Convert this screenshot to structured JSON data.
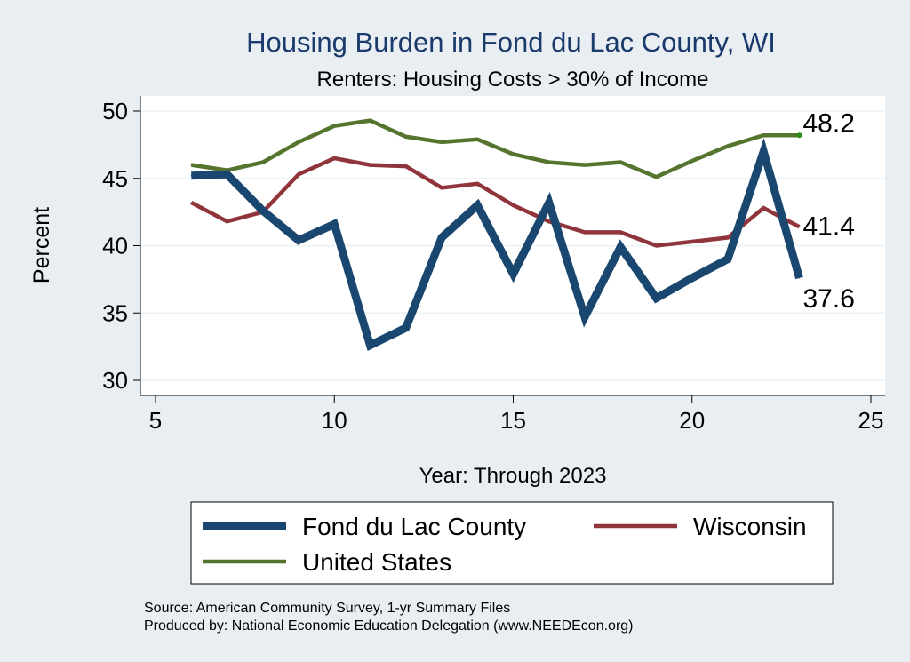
{
  "chart_data": {
    "type": "line",
    "title": "Housing Burden in Fond du Lac County, WI",
    "subtitle": "Renters: Housing Costs > 30% of Income",
    "xlabel": "Year: Through 2023",
    "ylabel": "Percent",
    "xlim": [
      5,
      25
    ],
    "ylim": [
      30,
      50
    ],
    "xticks": [
      5,
      10,
      15,
      20,
      25
    ],
    "yticks": [
      30,
      35,
      40,
      45,
      50
    ],
    "x": [
      6,
      7,
      8,
      9,
      10,
      11,
      12,
      13,
      14,
      15,
      16,
      17,
      18,
      19,
      20,
      21,
      22,
      23
    ],
    "series": [
      {
        "key": "fdl",
        "name": "Fond du Lac County",
        "color": "#1a476f",
        "end_label": "37.6",
        "values": [
          45.2,
          45.3,
          42.6,
          40.4,
          41.6,
          32.6,
          33.9,
          40.6,
          43.0,
          37.9,
          43.2,
          34.7,
          39.9,
          36.1,
          37.6,
          39.0,
          47.0,
          37.6
        ]
      },
      {
        "key": "wi",
        "name": "Wisconsin",
        "color": "#90353b",
        "end_label": "41.4",
        "values": [
          43.2,
          41.8,
          42.5,
          45.3,
          46.5,
          46.0,
          45.9,
          44.3,
          44.6,
          43.0,
          41.8,
          41.0,
          41.0,
          40.0,
          40.3,
          40.6,
          42.8,
          41.4
        ]
      },
      {
        "key": "us",
        "name": "United States",
        "color": "#55752f",
        "end_label": "48.2",
        "values": [
          46.0,
          45.6,
          46.2,
          47.7,
          48.9,
          49.3,
          48.1,
          47.7,
          47.9,
          46.8,
          46.2,
          46.0,
          46.2,
          45.1,
          46.3,
          47.4,
          48.2,
          48.2
        ]
      }
    ],
    "legend": {
      "position": "bottom",
      "entries": [
        "Fond du Lac County",
        "Wisconsin",
        "United States"
      ]
    },
    "notes": [
      "Source: American Community Survey, 1-yr Summary Files",
      "Produced by: National Economic Education Delegation (www.NEEDEcon.org)"
    ],
    "grid": true
  }
}
